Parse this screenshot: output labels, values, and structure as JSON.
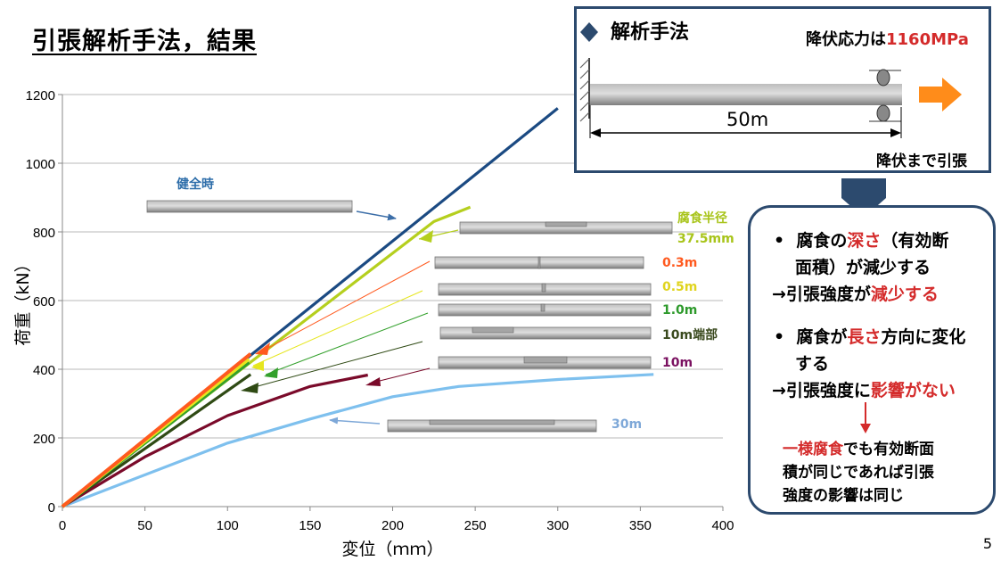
{
  "title": "引張解析手法，結果",
  "page_number": "5",
  "method_box": {
    "heading": "解析手法",
    "yield_label": "降伏応力は",
    "yield_value": "1160MPa",
    "length_label": "50m",
    "pull_label": "降伏まで引張",
    "colors": {
      "value": "#d42b2b",
      "arrow": "#ff8c1a",
      "border": "#2c4a6e"
    }
  },
  "conclusion_box": {
    "bullet1_a": "腐食の",
    "bullet1_b": "深さ",
    "bullet1_c": "（有効断",
    "bullet1_d": "面積）が減少する",
    "result1_a": "→引張強度が",
    "result1_b": "減少する",
    "bullet2_a": "腐食が",
    "bullet2_b": "長さ",
    "bullet2_c": "方向に変化",
    "bullet2_d": "する",
    "result2_a": "→引張強度に",
    "result2_b": "影響がない",
    "note_a": "一様腐食",
    "note_b": "でも有効断面",
    "note_c": "積が同じであれば引張",
    "note_d": "強度の影響は同じ"
  },
  "chart_data": {
    "type": "line",
    "xlabel": "変位（ｍｍ）",
    "ylabel": "荷重（kN）",
    "xlim": [
      0,
      400
    ],
    "ylim": [
      0,
      1200
    ],
    "xticks": [
      0,
      50,
      100,
      150,
      200,
      250,
      300,
      350,
      400
    ],
    "yticks": [
      0,
      200,
      400,
      600,
      800,
      1000,
      1200
    ],
    "grid": "horizontal",
    "series": [
      {
        "name": "健全時",
        "color": "#1b4a82",
        "points": [
          [
            0,
            0
          ],
          [
            300,
            1160
          ]
        ]
      },
      {
        "name": "腐食半径37.5mm",
        "color": "#b5cf1e",
        "points": [
          [
            0,
            0
          ],
          [
            225,
            830
          ],
          [
            247,
            872
          ]
        ]
      },
      {
        "name": "0.3m",
        "color": "#ff5a1f",
        "points": [
          [
            0,
            0
          ],
          [
            114,
            445
          ]
        ]
      },
      {
        "name": "0.5m",
        "color": "#e6e61e",
        "points": [
          [
            0,
            0
          ],
          [
            113,
            430
          ]
        ]
      },
      {
        "name": "1.0m",
        "color": "#33a02c",
        "points": [
          [
            0,
            0
          ],
          [
            113,
            420
          ]
        ]
      },
      {
        "name": "10m端部",
        "color": "#2f4a14",
        "points": [
          [
            0,
            0
          ],
          [
            114,
            385
          ]
        ]
      },
      {
        "name": "10m",
        "color": "#7a0a2a",
        "points": [
          [
            0,
            0
          ],
          [
            50,
            145
          ],
          [
            100,
            265
          ],
          [
            150,
            350
          ],
          [
            185,
            383
          ]
        ]
      },
      {
        "name": "30m",
        "color": "#7ec0ee",
        "points": [
          [
            0,
            0
          ],
          [
            100,
            185
          ],
          [
            150,
            255
          ],
          [
            200,
            320
          ],
          [
            240,
            350
          ],
          [
            300,
            370
          ],
          [
            358,
            385
          ]
        ]
      }
    ],
    "labels": [
      {
        "text": "健全時",
        "color": "#2e6eaa"
      },
      {
        "text": "腐食半径",
        "color": "#a8c41a"
      },
      {
        "text": "37.5mm",
        "color": "#a8c41a"
      },
      {
        "text": "0.3m",
        "color": "#ff5a1f"
      },
      {
        "text": "0.5m",
        "color": "#e0d41e"
      },
      {
        "text": "1.0m",
        "color": "#2e9a2c"
      },
      {
        "text": "10m端部",
        "color": "#3a4a1e"
      },
      {
        "text": "10m",
        "color": "#7a1060"
      },
      {
        "text": "30m",
        "color": "#7ea8d8"
      }
    ]
  }
}
